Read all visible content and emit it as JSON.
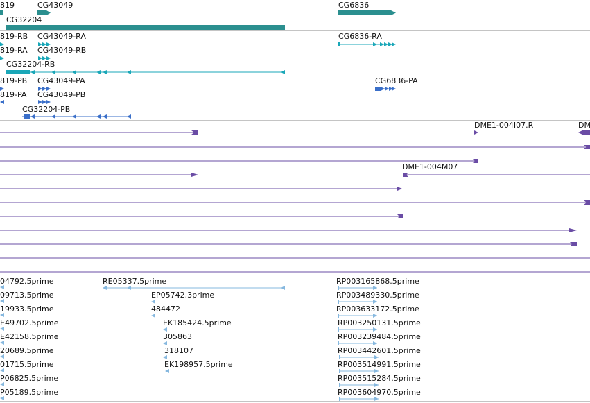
{
  "colors": {
    "gene": "#2b8f8f",
    "transcript_ra": "#1aa7b8",
    "protein": "#3a6fc9",
    "clone": "#6a4ca5",
    "est": "#86b8df",
    "separator": "#c4c4c4"
  },
  "genes": {
    "g0": "819",
    "g1": "CG43049",
    "g2": "CG6836",
    "g3": "CG32204"
  },
  "transcripts": {
    "t0": "819-RB",
    "t1": "CG43049-RA",
    "t2": "CG6836-RA",
    "t3": "819-RA",
    "t4": "CG43049-RB",
    "t5": "CG32204-RB"
  },
  "proteins": {
    "p0": "819-PB",
    "p1": "CG43049-PA",
    "p2": "CG6836-PA",
    "p3": "819-PA",
    "p4": "CG43049-PB",
    "p5": "CG32204-PB"
  },
  "clones": {
    "c0": "DME1-004I07.R",
    "c1": "DM",
    "c2": "DME1-004M07"
  },
  "ests": {
    "e0": "04792.5prime",
    "e1": "09713.5prime",
    "e2": "19933.5prime",
    "e3": "E49702.5prime",
    "e4": "E42158.5prime",
    "e5": "20689.5prime",
    "e6": "01715.5prime",
    "e7": "P06825.5prime",
    "e8": "P05189.5prime",
    "m0": "RE05337.5prime",
    "m1": "EP05742.3prime",
    "m2": "484472",
    "m3": "EK185424.5prime",
    "m4": "305863",
    "m5": "318107",
    "m6": "EK198957.5prime",
    "r0": "RP003165868.5prime",
    "r1": "RP003489330.5prime",
    "r2": "RP003633172.5prime",
    "r3": "RP003250131.5prime",
    "r4": "RP003239484.5prime",
    "r5": "RP003442601.5prime",
    "r6": "RP003514991.5prime",
    "r7": "RP003515284.5prime",
    "r8": "RP003604970.5prime"
  }
}
